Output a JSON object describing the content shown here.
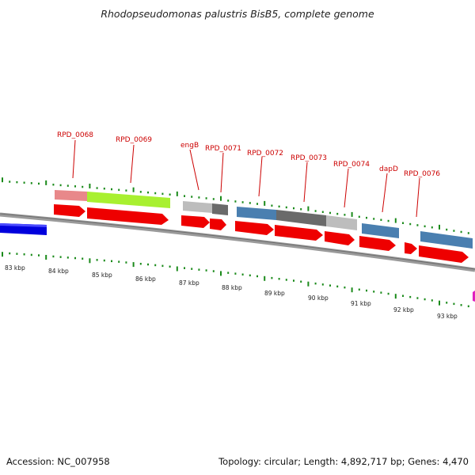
{
  "title": "Rhodopseudomonas palustris BisB5, complete genome",
  "footer": {
    "accession": "Accession: NC_007958",
    "info": "Topology: circular; Length: 4,892,717 bp; Genes: 4,470"
  },
  "colors": {
    "backbone": "#808080",
    "cds": "#ee0000",
    "minor_tick": "#1a8a1a",
    "gene_label": "#cc0000",
    "cog_blue": "#4a7fb0",
    "cog_gray": "#bdbdbd",
    "cog_darkgray": "#6a6a6a",
    "cog_pink": "#e8888a",
    "cog_lime": "#a8f030",
    "prev_gene": "#0000dd"
  },
  "gene_labels": [
    "RPD_0068",
    "RPD_0069",
    "engB",
    "RPD_0071",
    "RPD_0072",
    "RPD_0073",
    "RPD_0074",
    "dapD",
    "RPD_0076"
  ],
  "kbp_labels": [
    "83 kbp",
    "84 kbp",
    "85 kbp",
    "86 kbp",
    "87 kbp",
    "88 kbp",
    "89 kbp",
    "90 kbp",
    "91 kbp",
    "92 kbp",
    "93 kbp"
  ]
}
